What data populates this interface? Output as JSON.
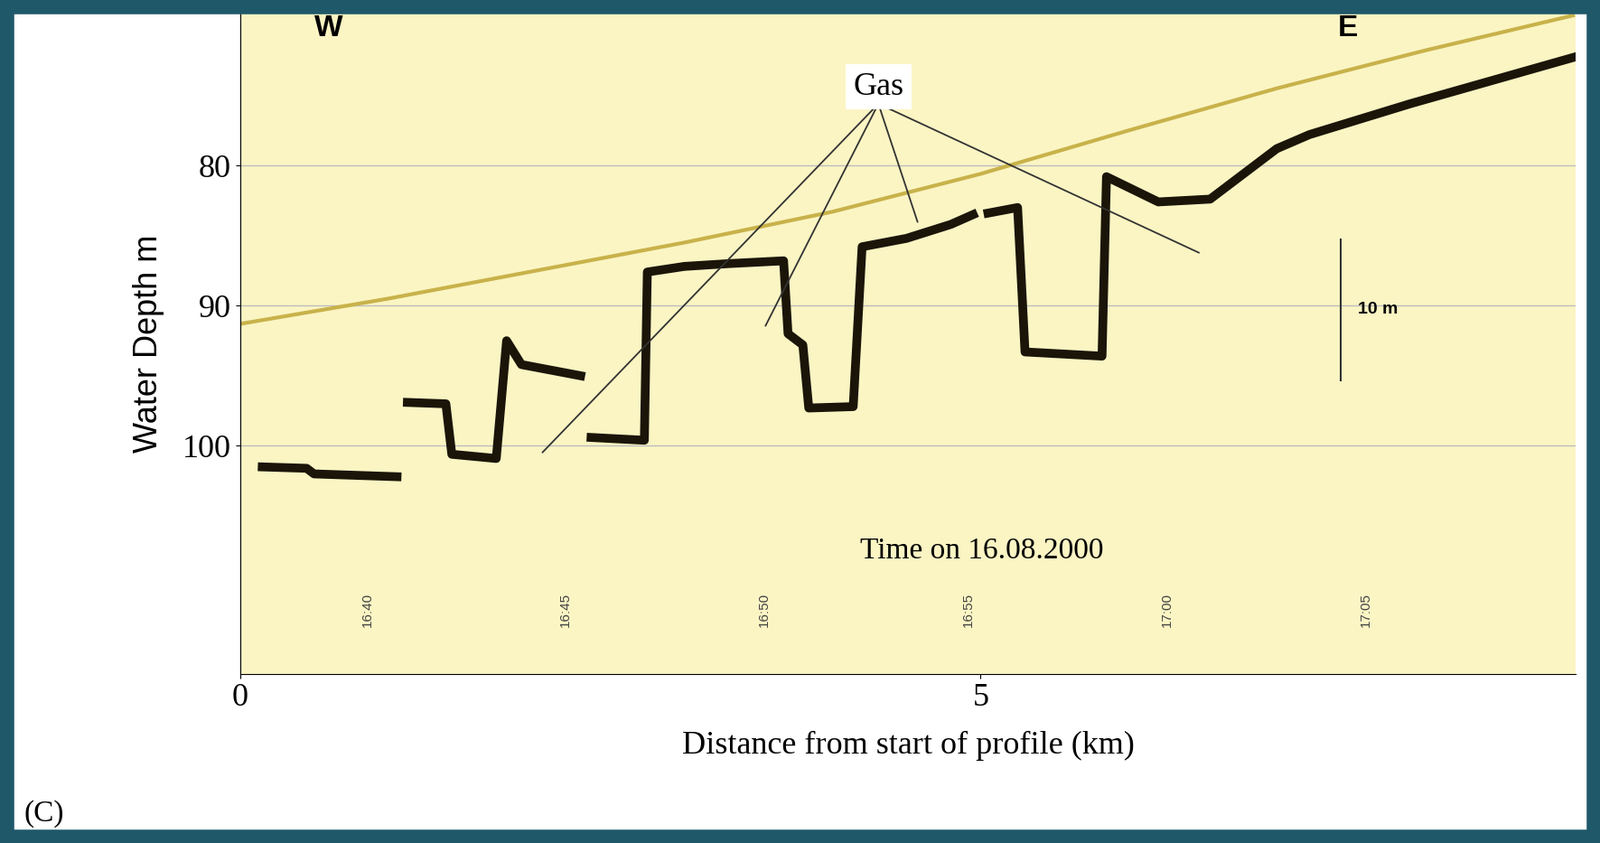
{
  "chart_data": {
    "type": "line",
    "xlabel": "Distance from start of profile (km)",
    "ylabel": "Water Depth m",
    "xlim": [
      0,
      9.02
    ],
    "xticks": [
      0,
      5
    ],
    "ylim": [
      116.3,
      69.1
    ],
    "yticks": [
      80,
      90,
      100
    ],
    "grid": "y",
    "series": [
      {
        "color": "#c8b24a",
        "line_style": "solid",
        "x": [
          0,
          1,
          2,
          3,
          4,
          5,
          6,
          7,
          8,
          9
        ],
        "values": [
          91.3,
          89.5,
          87.5,
          85.5,
          83.3,
          80.6,
          77.5,
          74.5,
          71.8,
          69.3
        ]
      },
      {
        "color": "#1a1508",
        "line_style": "solid",
        "x": [
          0.15,
          0.45,
          0.5,
          1.06,
          1.09,
          1.13,
          1.39,
          1.43,
          1.73,
          1.8,
          1.9,
          2.3,
          2.33,
          2.37,
          2.73,
          2.75,
          3.0,
          3.3,
          3.67,
          3.7,
          3.8,
          3.84,
          4.14,
          4.2,
          4.5,
          4.8,
          4.95,
          5.0,
          5.05,
          5.25,
          5.3,
          5.82,
          5.85,
          6.2,
          6.55,
          7.0,
          7.22,
          7.9,
          8.5,
          9.0
        ],
        "values": [
          101.5,
          101.6,
          102.0,
          102.2,
          null,
          96.9,
          97.0,
          100.6,
          100.9,
          92.5,
          94.2,
          95.0,
          null,
          99.4,
          99.6,
          87.6,
          87.2,
          87.0,
          86.8,
          92.0,
          92.8,
          97.3,
          97.2,
          85.8,
          85.2,
          84.2,
          83.5,
          null,
          83.4,
          83.0,
          93.3,
          93.6,
          80.8,
          82.6,
          82.4,
          78.8,
          77.8,
          75.6,
          73.8,
          72.3
        ]
      }
    ],
    "annotations": [
      {
        "text": "Gas",
        "x": 4.31,
        "y": 74.4,
        "targets": [
          [
            2.03,
            100.6
          ],
          [
            3.54,
            91.6
          ],
          [
            4.58,
            84.2
          ],
          [
            6.49,
            86.3
          ]
        ]
      },
      {
        "text": "W",
        "x": 0.6,
        "y": 70.2
      },
      {
        "text": "E",
        "x": 7.48,
        "y": 70.2
      },
      {
        "text": "Time on 16.08.2000",
        "x": 5.01,
        "y": 107.5
      }
    ],
    "times": {
      "x": [
        0.86,
        2.2,
        3.54,
        4.92,
        6.26,
        7.6
      ],
      "labels": [
        "16:40",
        "16:45",
        "16:50",
        "16:55",
        "17:00",
        "17:05"
      ],
      "y": 111.7
    },
    "scale_bar": {
      "label": "10 m",
      "x": 7.43,
      "from": 85.3,
      "to": 95.3
    },
    "panel_label": "(C)"
  }
}
